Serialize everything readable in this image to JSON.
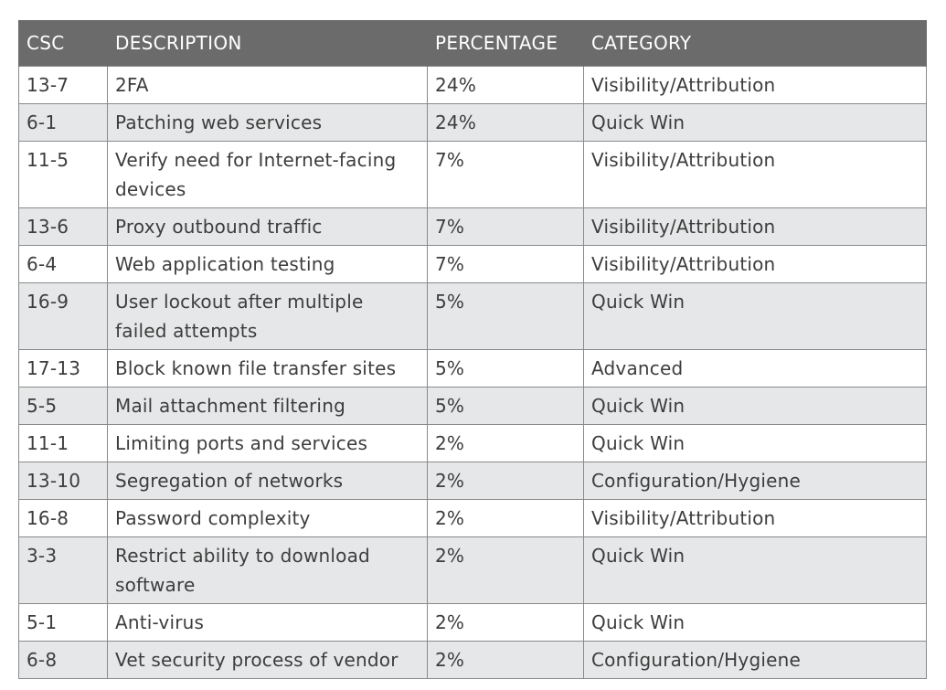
{
  "table": {
    "headers": [
      "CSC",
      "DESCRIPTION",
      "PERCENTAGE",
      "CATEGORY"
    ],
    "rows": [
      {
        "csc": "13-7",
        "description": "2FA",
        "percentage": "24%",
        "category": "Visibility/Attribution"
      },
      {
        "csc": "6-1",
        "description": "Patching web services",
        "percentage": "24%",
        "category": "Quick Win"
      },
      {
        "csc": "11-5",
        "description": "Verify need for Internet-facing devices",
        "percentage": "7%",
        "category": "Visibility/Attribution"
      },
      {
        "csc": "13-6",
        "description": "Proxy outbound traffic",
        "percentage": "7%",
        "category": "Visibility/Attribution"
      },
      {
        "csc": "6-4",
        "description": "Web application testing",
        "percentage": "7%",
        "category": "Visibility/Attribution"
      },
      {
        "csc": "16-9",
        "description": "User lockout after multiple failed attempts",
        "percentage": "5%",
        "category": "Quick Win"
      },
      {
        "csc": "17-13",
        "description": "Block known file transfer sites",
        "percentage": "5%",
        "category": "Advanced"
      },
      {
        "csc": "5-5",
        "description": "Mail attachment filtering",
        "percentage": "5%",
        "category": "Quick Win"
      },
      {
        "csc": "11-1",
        "description": "Limiting ports and services",
        "percentage": "2%",
        "category": "Quick Win"
      },
      {
        "csc": "13-10",
        "description": "Segregation of networks",
        "percentage": "2%",
        "category": "Configuration/Hygiene"
      },
      {
        "csc": "16-8",
        "description": "Password complexity",
        "percentage": "2%",
        "category": "Visibility/Attribution"
      },
      {
        "csc": "3-3",
        "description": "Restrict ability to download software",
        "percentage": "2%",
        "category": "Quick Win"
      },
      {
        "csc": "5-1",
        "description": "Anti-virus",
        "percentage": "2%",
        "category": "Quick Win"
      },
      {
        "csc": "6-8",
        "description": "Vet security process of vendor",
        "percentage": "2%",
        "category": "Configuration/Hygiene"
      }
    ]
  }
}
